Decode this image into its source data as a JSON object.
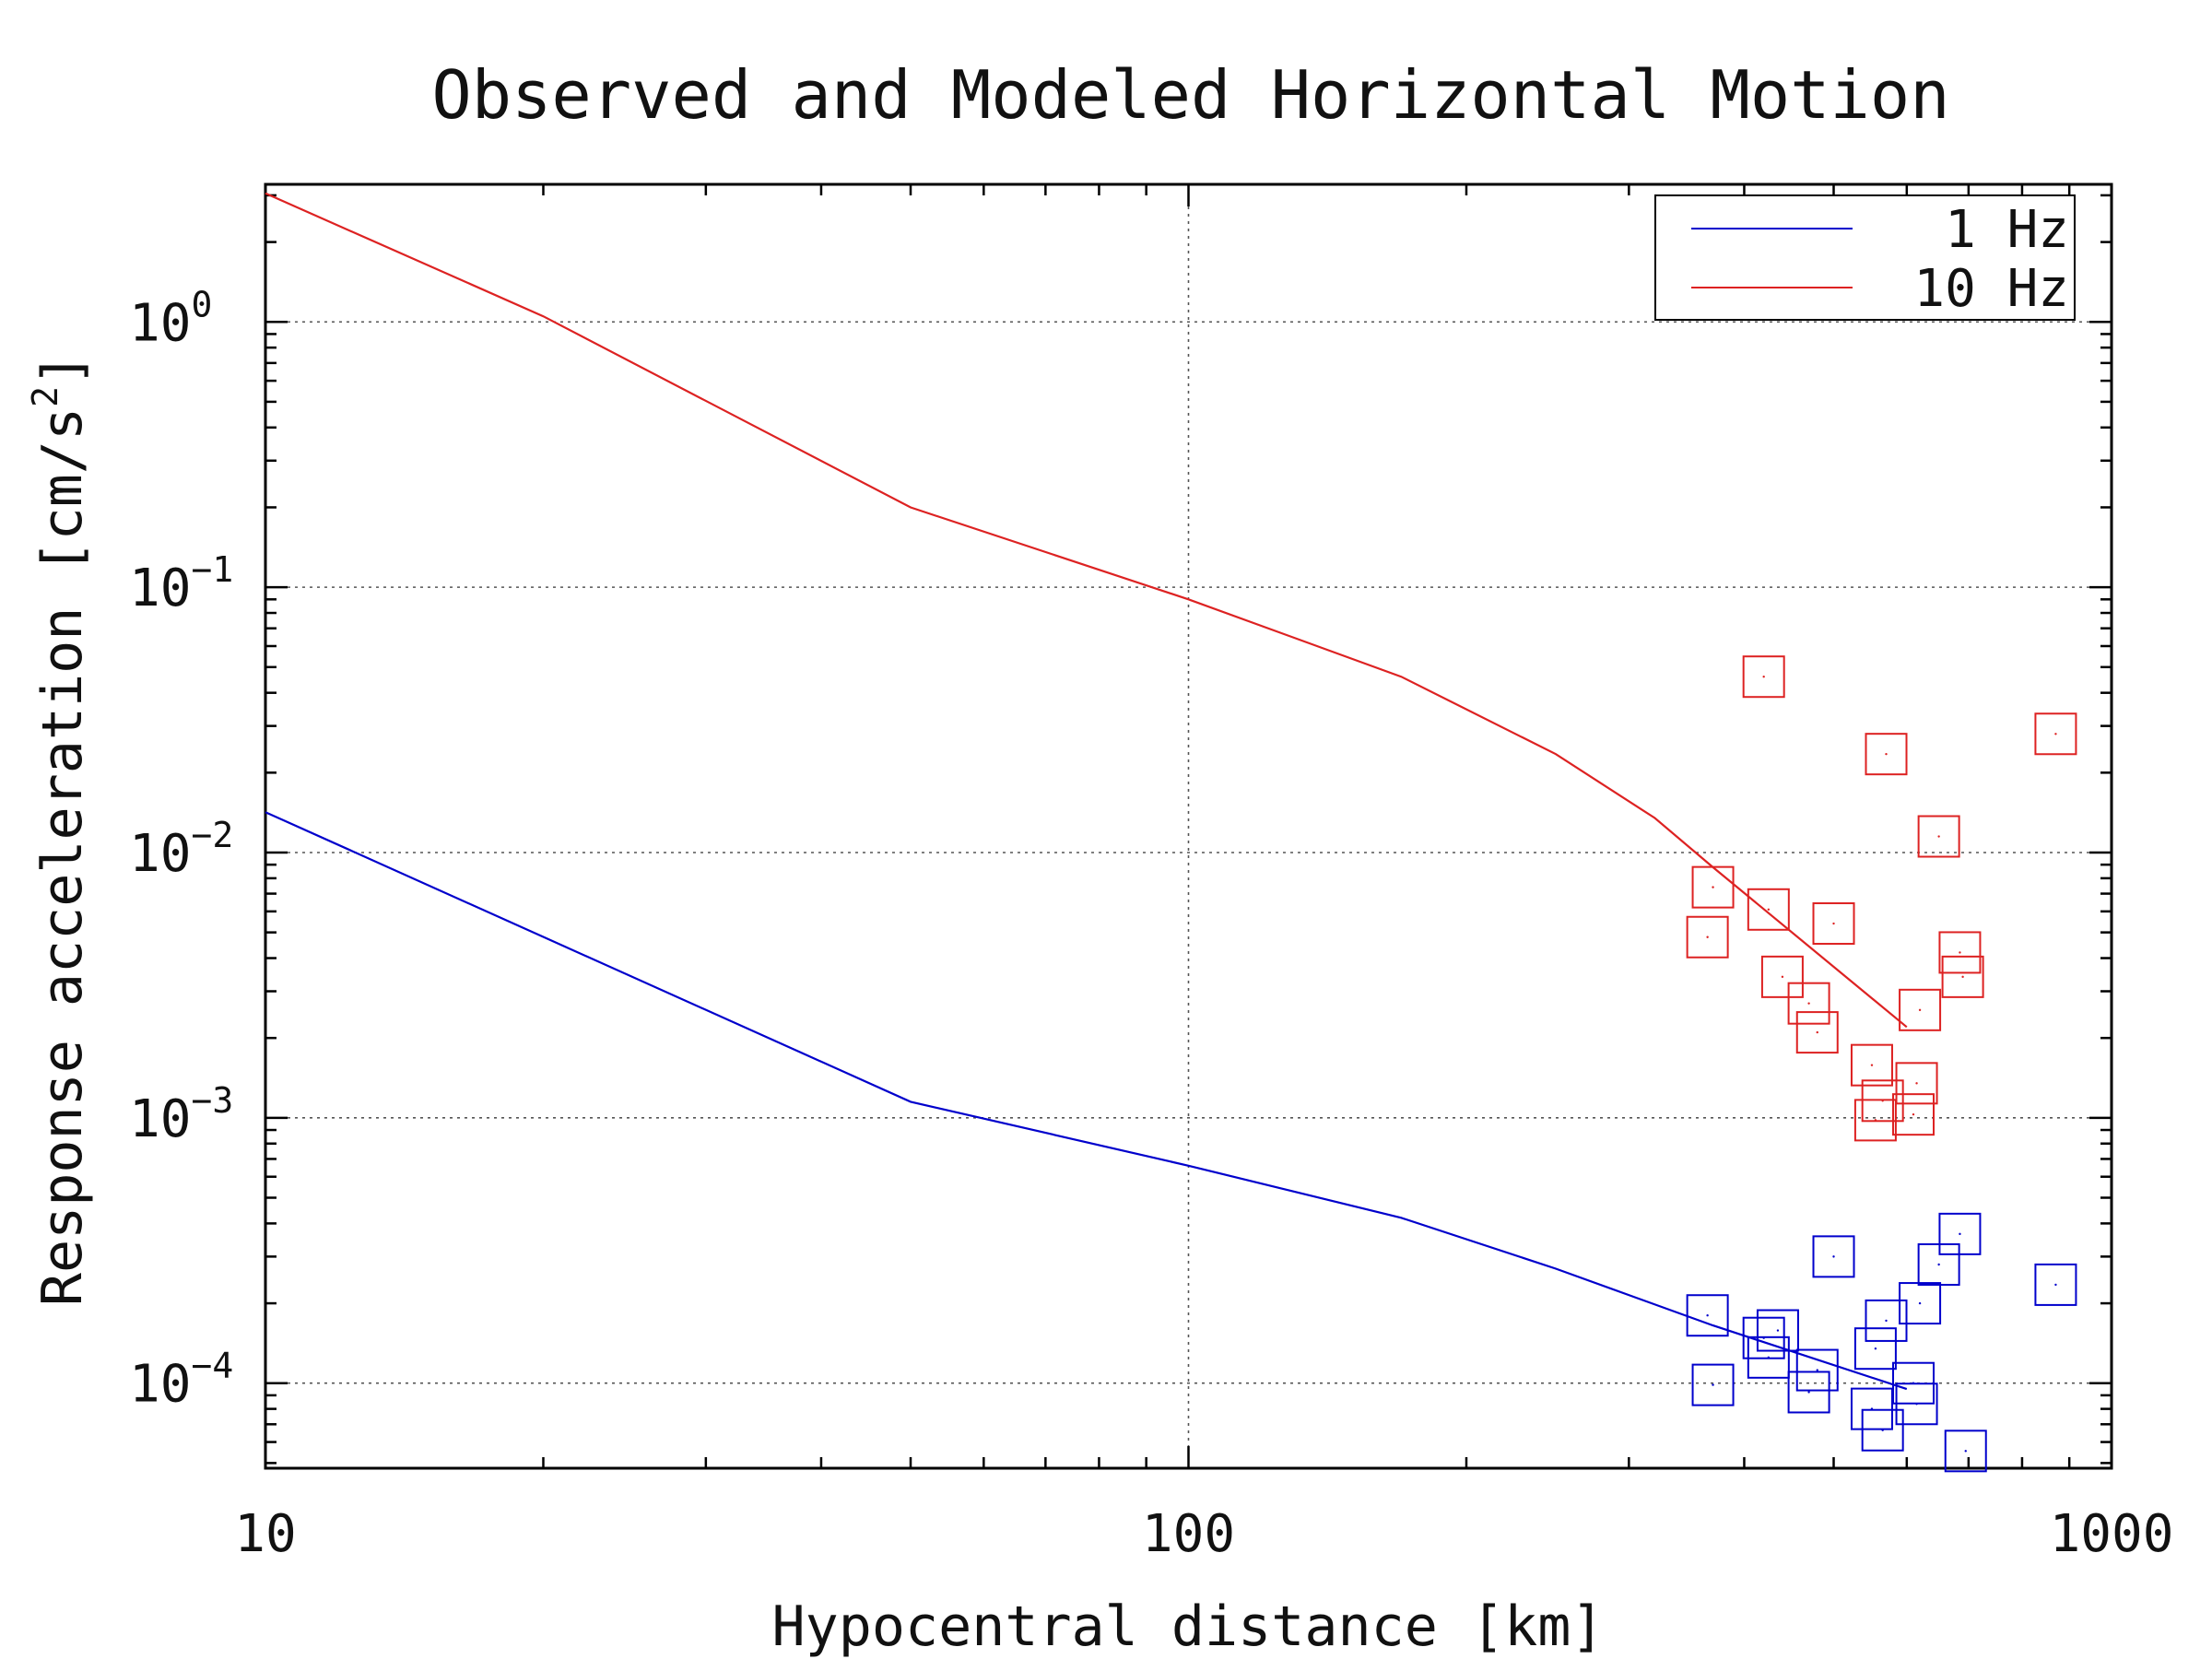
{
  "chart_data": {
    "type": "scatter",
    "title": "Observed and Modeled Horizontal Motion",
    "xlabel": "Hypocentral distance [km]",
    "ylabel_main": "Response acceleration [cm/s",
    "ylabel_sup": "2",
    "ylabel_close": "]",
    "x_scale": "log",
    "y_scale": "log",
    "xlim": [
      10,
      1000
    ],
    "ylim": [
      4.78e-05,
      3.3
    ],
    "x_ticks": [
      {
        "value": 10,
        "label": "10"
      },
      {
        "value": 100,
        "label": "100"
      },
      {
        "value": 1000,
        "label": "1000"
      }
    ],
    "y_ticks": [
      {
        "value": 1,
        "base": "10",
        "exp": "0"
      },
      {
        "value": 0.1,
        "base": "10",
        "exp": "−1"
      },
      {
        "value": 0.01,
        "base": "10",
        "exp": "−2"
      },
      {
        "value": 0.001,
        "base": "10",
        "exp": "−3"
      },
      {
        "value": 0.0001,
        "base": "10",
        "exp": "−4"
      }
    ],
    "grid": true,
    "legend_position": "top-right",
    "series": [
      {
        "name": "1 Hz",
        "color": "#0000cc",
        "line": {
          "x": [
            10,
            50,
            100,
            170,
            250,
            370,
            600
          ],
          "y": [
            0.0142,
            0.00115,
            0.00066,
            0.00042,
            0.00027,
            0.000165,
            9.5e-05
          ]
        },
        "points": {
          "x": [
            365,
            370,
            420,
            425,
            435,
            470,
            480,
            500,
            550,
            555,
            565,
            570,
            610,
            615,
            620,
            650,
            685,
            695,
            870
          ],
          "y": [
            0.00018,
            9.85e-05,
            0.000148,
            0.000125,
            0.000158,
            9.25e-05,
            0.000112,
            0.0003,
            8e-05,
            0.000135,
            6.65e-05,
            0.000172,
            0.0001,
            8.35e-05,
            0.0002,
            0.00028,
            0.000365,
            5.55e-05,
            0.000235
          ]
        }
      },
      {
        "name": "10 Hz",
        "color": "#dd2222",
        "line": {
          "x": [
            10,
            20,
            50,
            100,
            170,
            250,
            320,
            370,
            600
          ],
          "y": [
            3.05,
            1.05,
            0.2,
            0.09,
            0.046,
            0.0235,
            0.0135,
            0.0088,
            0.0022
          ]
        },
        "points": {
          "x": [
            365,
            370,
            420,
            425,
            440,
            470,
            480,
            500,
            550,
            555,
            565,
            570,
            610,
            615,
            620,
            650,
            685,
            690,
            870
          ],
          "y": [
            0.0048,
            0.0074,
            0.046,
            0.0061,
            0.0034,
            0.0027,
            0.0021,
            0.0054,
            0.00158,
            0.00098,
            0.00116,
            0.0235,
            0.00103,
            0.00135,
            0.00255,
            0.0115,
            0.0042,
            0.0034,
            0.028
          ]
        }
      }
    ]
  }
}
